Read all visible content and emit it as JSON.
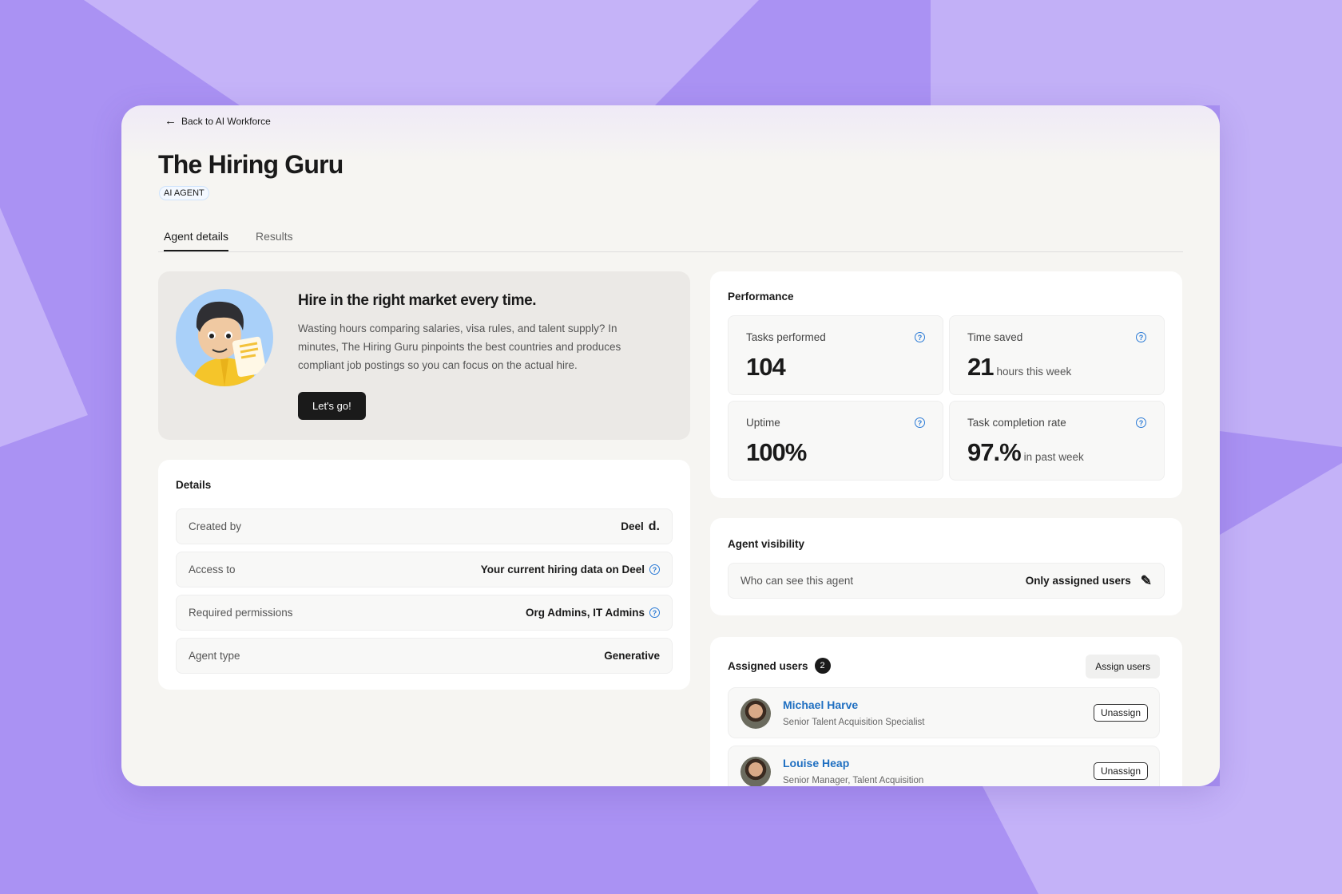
{
  "header": {
    "back_label": "Back to AI Workforce",
    "title": "The Hiring Guru",
    "badge": "AI AGENT"
  },
  "tabs": [
    {
      "label": "Agent details",
      "active": true
    },
    {
      "label": "Results",
      "active": false
    }
  ],
  "hero": {
    "heading": "Hire in the right market every time.",
    "body": "Wasting hours comparing salaries, visa rules, and talent supply? In minutes, The Hiring Guru pinpoints the best countries and produces compliant job postings so you can focus on the actual hire.",
    "cta": "Let's go!"
  },
  "details": {
    "title": "Details",
    "rows": [
      {
        "label": "Created by",
        "value": "Deel",
        "logo": "d."
      },
      {
        "label": "Access to",
        "value": "Your current hiring data on Deel",
        "help": true
      },
      {
        "label": "Required permissions",
        "value": "Org Admins, IT Admins",
        "help": true
      },
      {
        "label": "Agent type",
        "value": "Generative"
      }
    ]
  },
  "performance": {
    "title": "Performance",
    "stats": [
      {
        "label": "Tasks performed",
        "value": "104",
        "suffix": ""
      },
      {
        "label": "Time saved",
        "value": "21",
        "suffix": "hours this week"
      },
      {
        "label": "Uptime",
        "value": "100%",
        "suffix": ""
      },
      {
        "label": "Task completion rate",
        "value": "97.%",
        "suffix": "in past week"
      }
    ]
  },
  "visibility": {
    "title": "Agent visibility",
    "label": "Who can see this agent",
    "value": "Only assigned users"
  },
  "assigned": {
    "title": "Assigned users",
    "count": "2",
    "assign_label": "Assign users",
    "users": [
      {
        "name": "Michael Harve",
        "role": "Senior Talent Acquisition Specialist",
        "action": "Unassign"
      },
      {
        "name": "Louise Heap",
        "role": "Senior Manager, Talent Acquisition",
        "action": "Unassign"
      }
    ]
  },
  "colors": {
    "accent": "#1f6fc1",
    "background": "#b7a2f5",
    "dark_button": "#1a1a1a"
  }
}
